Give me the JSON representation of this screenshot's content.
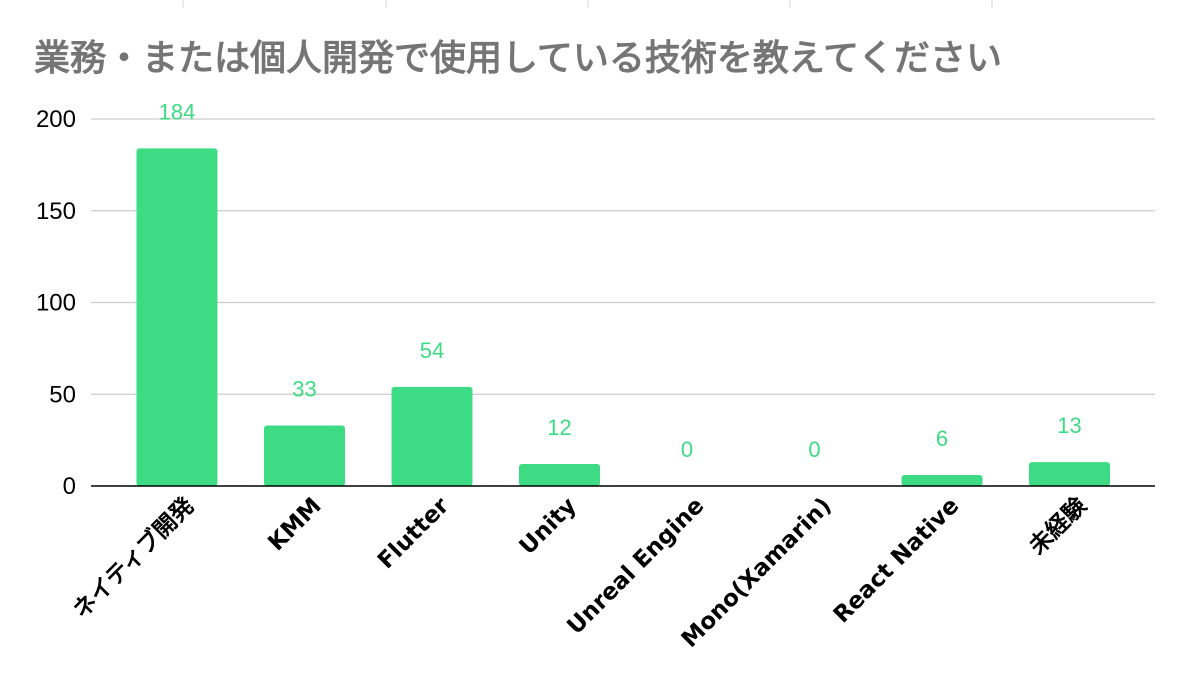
{
  "chart_data": {
    "type": "bar",
    "title": "業務・または個人開発で使用している技術を教えてください",
    "xlabel": "",
    "ylabel": "",
    "categories": [
      "ネイティブ開発",
      "KMM",
      "Flutter",
      "Unity",
      "Unreal Engine",
      "Mono(Xamarin)",
      "React Native",
      "未経験"
    ],
    "values": [
      184,
      33,
      54,
      12,
      0,
      0,
      6,
      13
    ],
    "data_labels": [
      "184",
      "33",
      "54",
      "12",
      "0",
      "0",
      "6",
      "13"
    ],
    "ylim": [
      0,
      200
    ],
    "yticks": [
      0,
      50,
      100,
      150,
      200
    ],
    "ytick_labels": [
      "0",
      "50",
      "100",
      "150",
      "200"
    ],
    "grid": true,
    "legend": "none",
    "colors": {
      "bar": "#3ddc84",
      "data_label": "#3ddc84",
      "title": "#757575",
      "grid": "#cccccc",
      "axis": "#000000"
    }
  }
}
